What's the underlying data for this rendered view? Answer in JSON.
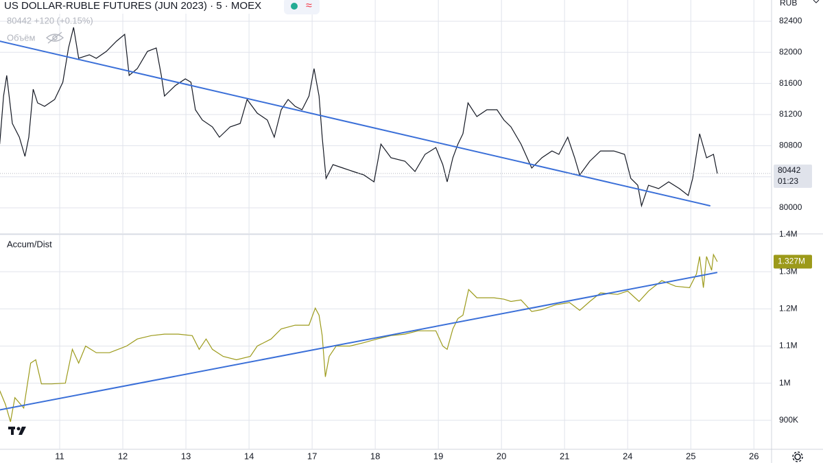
{
  "header": {
    "symbol": "US DOLLAR-RUBLE FUTURES (JUN 2023) · 5 · MOEX",
    "quote": "80442 +120 (+0.15%)",
    "volume": "Объём",
    "currency": "RUB"
  },
  "chart_data": [
    {
      "type": "line",
      "color": "#131722",
      "x": [
        0.05,
        0.11,
        0.16,
        0.25,
        0.36,
        0.45,
        0.51,
        0.58,
        0.65,
        0.76,
        0.92,
        1.05,
        1.14,
        1.22,
        1.3,
        1.47,
        1.58,
        1.74,
        1.9,
        2.03,
        2.1,
        2.23,
        2.39,
        2.53,
        2.61,
        2.66,
        2.83,
        2.99,
        3.08,
        3.15,
        3.26,
        3.42,
        3.53,
        3.7,
        3.86,
        3.97,
        4.13,
        4.29,
        4.4,
        4.51,
        4.62,
        4.73,
        4.84,
        4.95,
        5.03,
        5.11,
        5.16,
        5.22,
        5.33,
        5.49,
        5.65,
        5.82,
        5.98,
        6.09,
        6.25,
        6.47,
        6.63,
        6.79,
        6.96,
        7.07,
        7.14,
        7.23,
        7.31,
        7.39,
        7.47,
        7.61,
        7.77,
        7.93,
        8.04,
        8.15,
        8.31,
        8.48,
        8.64,
        8.8,
        8.91,
        9.05,
        9.16,
        9.24,
        9.4,
        9.57,
        9.78,
        9.95,
        10.05,
        10.16,
        10.22,
        10.33,
        10.49,
        10.65,
        10.82,
        10.96,
        11.03,
        11.14,
        11.25,
        11.36,
        11.42
      ],
      "values": [
        80820,
        81438,
        81703,
        81085,
        80909,
        80662,
        80909,
        81526,
        81350,
        81306,
        81394,
        81615,
        82056,
        82321,
        81923,
        81968,
        81923,
        82012,
        82144,
        82232,
        81703,
        81791,
        82012,
        82056,
        81703,
        81438,
        81571,
        81659,
        81615,
        81262,
        81129,
        81041,
        80909,
        81041,
        81085,
        81394,
        81218,
        81129,
        80909,
        81262,
        81394,
        81306,
        81262,
        81438,
        81791,
        81438,
        80909,
        80379,
        80556,
        80512,
        80468,
        80423,
        80335,
        80820,
        80644,
        80600,
        80468,
        80688,
        80776,
        80556,
        80335,
        80644,
        80820,
        80953,
        81350,
        81174,
        81262,
        81262,
        81129,
        81041,
        80820,
        80512,
        80644,
        80732,
        80688,
        80909,
        80644,
        80423,
        80600,
        80732,
        80732,
        80688,
        80379,
        80291,
        80026,
        80291,
        80247,
        80335,
        80247,
        80159,
        80379,
        80953,
        80644,
        80688,
        80442
      ],
      "trendline": {
        "x": [
          0.05,
          11.31
        ],
        "values": [
          82144,
          80026
        ],
        "color": "#3a6fd8"
      },
      "xlim": [
        0.054,
        12.28
      ],
      "ylim": [
        79674,
        82673
      ],
      "yticks": [
        80000,
        80400,
        80800,
        81200,
        81600,
        82000,
        82400
      ],
      "last_value": 80442,
      "countdown": "01:23"
    },
    {
      "type": "line",
      "title": "Accum/Dist",
      "color": "#9c9a1a",
      "x": [
        0.05,
        0.14,
        0.22,
        0.29,
        0.43,
        0.54,
        0.62,
        0.71,
        0.87,
        1.09,
        1.2,
        1.3,
        1.41,
        1.58,
        1.79,
        2.06,
        2.23,
        2.45,
        2.66,
        2.88,
        3.1,
        3.21,
        3.32,
        3.42,
        3.59,
        3.8,
        4.02,
        4.13,
        4.35,
        4.51,
        4.73,
        4.95,
        5.05,
        5.11,
        5.16,
        5.21,
        5.27,
        5.38,
        5.6,
        5.82,
        6.03,
        6.25,
        6.47,
        6.68,
        6.96,
        7.07,
        7.14,
        7.23,
        7.31,
        7.39,
        7.48,
        7.61,
        7.88,
        8.04,
        8.15,
        8.31,
        8.48,
        8.64,
        8.86,
        9.08,
        9.24,
        9.4,
        9.57,
        9.84,
        10.0,
        10.18,
        10.33,
        10.54,
        10.76,
        10.98,
        11.09,
        11.14,
        11.2,
        11.25,
        11.33,
        11.36,
        11.42
      ],
      "values": [
        980000,
        943000,
        896000,
        961000,
        933000,
        1054000,
        1063000,
        998000,
        998000,
        1000000,
        1091000,
        1054000,
        1100000,
        1082000,
        1082000,
        1100000,
        1119000,
        1128000,
        1132000,
        1132000,
        1128000,
        1091000,
        1119000,
        1091000,
        1072000,
        1063000,
        1072000,
        1100000,
        1119000,
        1146000,
        1156000,
        1156000,
        1202000,
        1183000,
        1128000,
        1017000,
        1072000,
        1100000,
        1100000,
        1109000,
        1119000,
        1128000,
        1132000,
        1141000,
        1141000,
        1100000,
        1091000,
        1146000,
        1174000,
        1183000,
        1252000,
        1230000,
        1230000,
        1226000,
        1220000,
        1224000,
        1193000,
        1198000,
        1211000,
        1217000,
        1196000,
        1220000,
        1243000,
        1239000,
        1248000,
        1220000,
        1248000,
        1276000,
        1261000,
        1257000,
        1294000,
        1341000,
        1257000,
        1341000,
        1304000,
        1346000,
        1327000
      ],
      "trendline": {
        "x": [
          0.05,
          11.42
        ],
        "values": [
          928000,
          1298000
        ],
        "color": "#3a6fd8"
      },
      "xlim": [
        0.054,
        12.28
      ],
      "ylim": [
        822000,
        1400000
      ],
      "yticks": [
        {
          "value": 900000,
          "label": "900K"
        },
        {
          "value": 1000000,
          "label": "1M"
        },
        {
          "value": 1100000,
          "label": "1.1M"
        },
        {
          "value": 1200000,
          "label": "1.2M"
        },
        {
          "value": 1300000,
          "label": "1.3M"
        },
        {
          "value": 1400000,
          "label": "1.4M"
        }
      ],
      "xticks": [
        {
          "value": 1,
          "label": "11"
        },
        {
          "value": 2,
          "label": "12"
        },
        {
          "value": 3,
          "label": "13"
        },
        {
          "value": 4,
          "label": "14"
        },
        {
          "value": 5,
          "label": "17"
        },
        {
          "value": 6,
          "label": "18"
        },
        {
          "value": 7,
          "label": "19"
        },
        {
          "value": 8,
          "label": "20"
        },
        {
          "value": 9,
          "label": "21"
        },
        {
          "value": 10,
          "label": "24"
        },
        {
          "value": 11,
          "label": "25"
        },
        {
          "value": 12,
          "label": "26"
        }
      ],
      "last_value": {
        "value": 1327000,
        "label": "1.327M"
      }
    }
  ]
}
